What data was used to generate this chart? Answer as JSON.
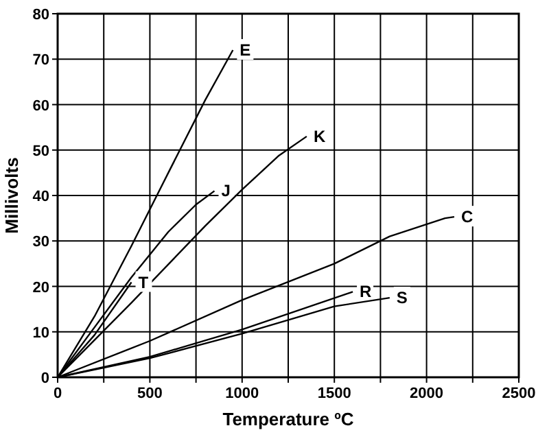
{
  "chart_data": {
    "type": "line",
    "xlabel": "Temperature ºC",
    "ylabel": "Millivolts",
    "xlim": [
      0,
      2500
    ],
    "ylim": [
      0,
      80
    ],
    "xticks": [
      0,
      {
        "value": 250,
        "label": null
      },
      500,
      {
        "value": 750,
        "label": null
      },
      1000,
      {
        "value": 1250,
        "label": null
      },
      1500,
      {
        "value": 1750,
        "label": null
      },
      2000,
      {
        "value": 2250,
        "label": null
      },
      2500
    ],
    "yticks": [
      0,
      10,
      20,
      30,
      40,
      50,
      60,
      70,
      80
    ],
    "grid": true,
    "marker": "none",
    "line_style": "solid",
    "series": [
      {
        "name": "E",
        "color": "#000000",
        "x": [
          0,
          200,
          400,
          600,
          800,
          950
        ],
        "values": [
          0,
          13.4,
          28.9,
          45,
          61,
          72
        ]
      },
      {
        "name": "J",
        "color": "#000000",
        "x": [
          0,
          200,
          400,
          600,
          750,
          850
        ],
        "values": [
          0,
          11,
          22,
          32,
          38,
          41
        ]
      },
      {
        "name": "K",
        "color": "#000000",
        "x": [
          0,
          400,
          800,
          1000,
          1200,
          1350
        ],
        "values": [
          0,
          16.4,
          33.3,
          41.3,
          48.8,
          53
        ]
      },
      {
        "name": "T",
        "color": "#000000",
        "x": [
          0,
          200,
          400
        ],
        "values": [
          0,
          9.3,
          20.9
        ]
      },
      {
        "name": "C",
        "color": "#000000",
        "x": [
          0,
          500,
          1000,
          1500,
          1800,
          2100,
          2150
        ],
        "values": [
          0,
          8,
          17,
          25,
          31,
          35,
          35.3
        ]
      },
      {
        "name": "R",
        "color": "#000000",
        "x": [
          0,
          500,
          1000,
          1600
        ],
        "values": [
          0,
          4.5,
          10.5,
          18.8
        ]
      },
      {
        "name": "S",
        "color": "#000000",
        "x": [
          0,
          500,
          1000,
          1500,
          1800
        ],
        "values": [
          0,
          4.2,
          9.6,
          15.6,
          17.5
        ]
      }
    ]
  }
}
